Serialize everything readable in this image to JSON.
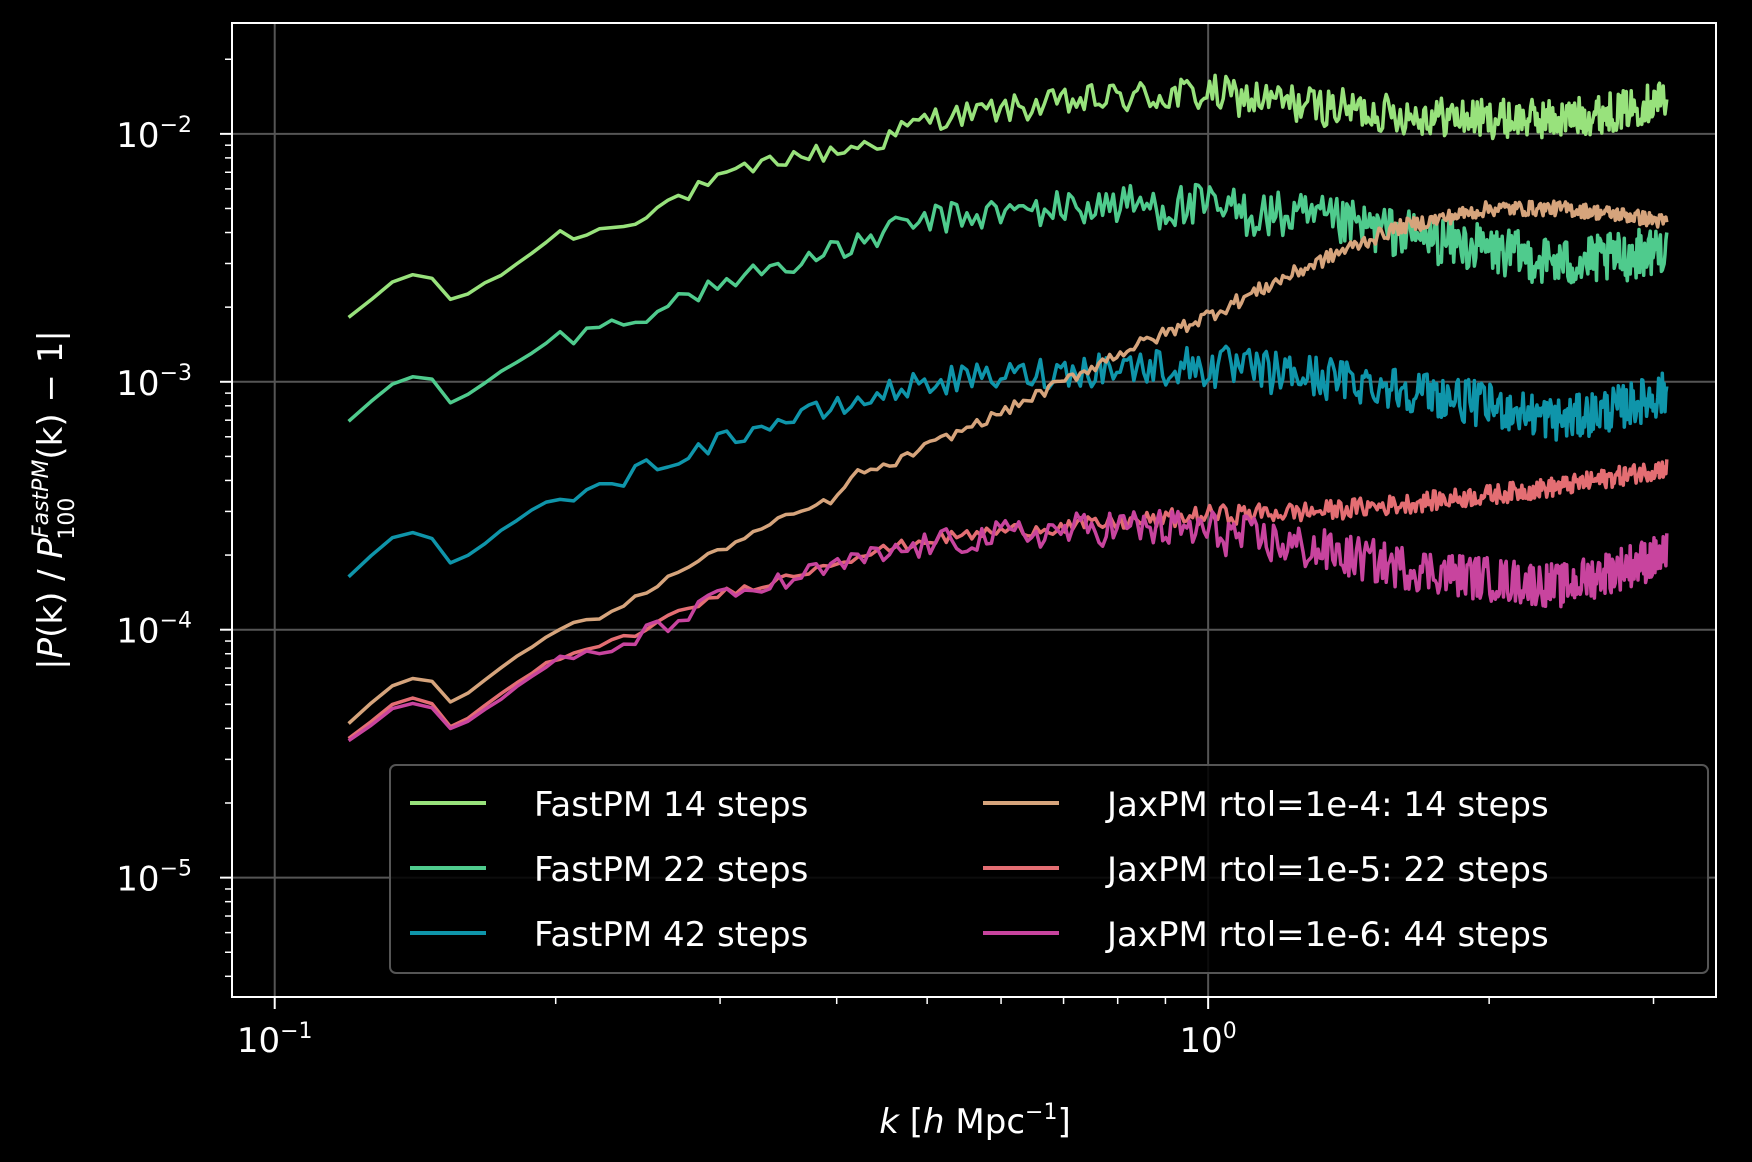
{
  "chart_data": {
    "type": "line",
    "title": "",
    "xscale": "log",
    "yscale": "log",
    "xlim": [
      0.09,
      3.5
    ],
    "ylim": [
      3.3e-06,
      0.028
    ],
    "grid": true,
    "legend_position": "lower-right",
    "legend_columns": 2,
    "background": "#000000",
    "xlabel": {
      "var": "k",
      "open": " [",
      "h": "h",
      "unit": " Mpc",
      "exp": "−1",
      "close": "]"
    },
    "ylabel": {
      "open": "|",
      "P": "P",
      "k": "(k)",
      "slash": " / ",
      "P2": "P",
      "sup": "FastPM",
      "sub": "100",
      "tail": "(k) − 1|"
    },
    "x_ticks": [
      {
        "value": 0.1,
        "base": "10",
        "exp": "−1"
      },
      {
        "value": 1,
        "base": "10",
        "exp": "0"
      }
    ],
    "y_ticks": [
      {
        "value": 0.01,
        "base": "10",
        "exp": "−2"
      },
      {
        "value": 0.001,
        "base": "10",
        "exp": "−3"
      },
      {
        "value": 0.0001,
        "base": "10",
        "exp": "−4"
      },
      {
        "value": 1e-05,
        "base": "10",
        "exp": "−5"
      }
    ],
    "k_range": [
      0.12,
      3.1
    ],
    "series": [
      {
        "name": "FastPM 14 steps",
        "color": "#98e27c",
        "legend_col": 0,
        "k": [
          0.12,
          0.135,
          0.145,
          0.155,
          0.175,
          0.2,
          0.22,
          0.24,
          0.27,
          0.3,
          0.35,
          0.4,
          0.45,
          0.5,
          0.6,
          0.8,
          1.0,
          1.3,
          1.6,
          2.0,
          2.4,
          2.8,
          3.1
        ],
        "y": [
          0.0018,
          0.0026,
          0.0028,
          0.0021,
          0.0027,
          0.0039,
          0.004,
          0.0045,
          0.0055,
          0.0065,
          0.008,
          0.0085,
          0.0095,
          0.0115,
          0.0125,
          0.014,
          0.0145,
          0.013,
          0.012,
          0.0115,
          0.0115,
          0.0125,
          0.014
        ],
        "noise": 0.08
      },
      {
        "name": "FastPM 22 steps",
        "color": "#4fcb8d",
        "legend_col": 0,
        "k": [
          0.12,
          0.135,
          0.145,
          0.155,
          0.175,
          0.2,
          0.22,
          0.24,
          0.27,
          0.3,
          0.35,
          0.4,
          0.45,
          0.5,
          0.6,
          0.8,
          1.0,
          1.3,
          1.6,
          2.0,
          2.4,
          2.8,
          3.1
        ],
        "y": [
          0.0007,
          0.001,
          0.0011,
          0.0008,
          0.0011,
          0.0015,
          0.0016,
          0.0018,
          0.0021,
          0.0025,
          0.003,
          0.0033,
          0.004,
          0.0045,
          0.0048,
          0.0052,
          0.005,
          0.0045,
          0.004,
          0.0034,
          0.003,
          0.0032,
          0.0035
        ],
        "noise": 0.1
      },
      {
        "name": "FastPM 42 steps",
        "color": "#0f95aa",
        "legend_col": 0,
        "k": [
          0.12,
          0.135,
          0.145,
          0.155,
          0.175,
          0.2,
          0.22,
          0.24,
          0.27,
          0.3,
          0.35,
          0.4,
          0.45,
          0.5,
          0.6,
          0.8,
          1.0,
          1.3,
          1.6,
          2.0,
          2.4,
          2.8,
          3.1
        ],
        "y": [
          0.000165,
          0.00024,
          0.00025,
          0.00018,
          0.00025,
          0.00035,
          0.00036,
          0.00042,
          0.0005,
          0.00058,
          0.0007,
          0.00078,
          0.0009,
          0.001,
          0.00105,
          0.00115,
          0.00115,
          0.00105,
          0.00095,
          0.0008,
          0.0007,
          0.0008,
          0.0009
        ],
        "noise": 0.09
      },
      {
        "name": "JaxPM rtol=1e-4: 14 steps",
        "color": "#d6a47c",
        "legend_col": 1,
        "k": [
          0.12,
          0.135,
          0.145,
          0.155,
          0.175,
          0.2,
          0.22,
          0.24,
          0.27,
          0.3,
          0.35,
          0.4,
          0.42,
          0.45,
          0.5,
          0.6,
          0.7,
          0.8,
          1.0,
          1.2,
          1.4,
          1.6,
          2.0,
          2.4,
          2.8,
          3.1
        ],
        "y": [
          4.2e-05,
          6.2e-05,
          6.6e-05,
          5e-05,
          7e-05,
          0.0001,
          0.00011,
          0.00013,
          0.00017,
          0.00021,
          0.00028,
          0.00034,
          0.00043,
          0.00045,
          0.00055,
          0.00075,
          0.001,
          0.0013,
          0.00185,
          0.0026,
          0.0034,
          0.0042,
          0.005,
          0.005,
          0.0047,
          0.0044
        ],
        "noise": 0.03
      },
      {
        "name": "JaxPM rtol=1e-5: 22 steps",
        "color": "#e46e73",
        "legend_col": 1,
        "k": [
          0.12,
          0.135,
          0.145,
          0.155,
          0.175,
          0.2,
          0.22,
          0.24,
          0.27,
          0.3,
          0.35,
          0.4,
          0.45,
          0.5,
          0.6,
          0.8,
          1.0,
          1.3,
          1.6,
          2.0,
          2.4,
          2.8,
          3.1
        ],
        "y": [
          3.65e-05,
          5.1e-05,
          5.4e-05,
          4e-05,
          5.5e-05,
          7.8e-05,
          8.2e-05,
          9.5e-05,
          0.000115,
          0.00014,
          0.00016,
          0.00019,
          0.00021,
          0.00023,
          0.00025,
          0.00027,
          0.00029,
          0.0003,
          0.00032,
          0.00035,
          0.00038,
          0.00042,
          0.00045
        ],
        "noise": 0.04
      },
      {
        "name": "JaxPM rtol=1e-6: 44 steps",
        "color": "#c8449e",
        "legend_col": 1,
        "k": [
          0.12,
          0.135,
          0.145,
          0.155,
          0.175,
          0.2,
          0.22,
          0.24,
          0.27,
          0.3,
          0.35,
          0.4,
          0.45,
          0.5,
          0.6,
          0.8,
          1.0,
          1.3,
          1.6,
          2.0,
          2.4,
          2.8,
          3.1
        ],
        "y": [
          3.55e-05,
          4.9e-05,
          5.2e-05,
          3.9e-05,
          5.3e-05,
          7.5e-05,
          7.8e-05,
          9e-05,
          0.00011,
          0.000135,
          0.000155,
          0.00018,
          0.0002,
          0.00022,
          0.00024,
          0.00026,
          0.00025,
          0.00021,
          0.00018,
          0.00016,
          0.00015,
          0.00018,
          0.0002
        ],
        "noise": 0.09
      }
    ]
  }
}
